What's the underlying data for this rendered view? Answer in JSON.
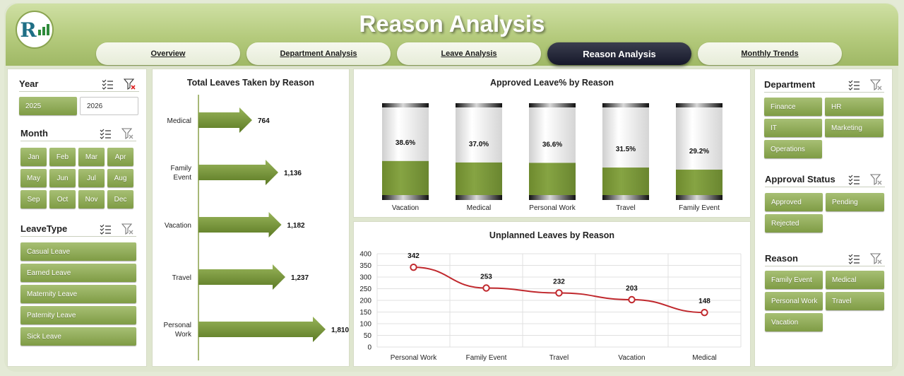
{
  "header": {
    "title": "Reason Analysis",
    "tabs": [
      {
        "label": "Overview",
        "active": false
      },
      {
        "label": "Department Analysis",
        "active": false
      },
      {
        "label": "Leave Analysis",
        "active": false
      },
      {
        "label": "Reason Analysis",
        "active": true
      },
      {
        "label": "Monthly Trends",
        "active": false
      }
    ]
  },
  "left_slicers": {
    "year": {
      "title": "Year",
      "items": [
        {
          "label": "2025",
          "selected": true
        },
        {
          "label": "2026",
          "selected": false
        }
      ]
    },
    "month": {
      "title": "Month",
      "items": [
        "Jan",
        "Feb",
        "Mar",
        "Apr",
        "May",
        "Jun",
        "Jul",
        "Aug",
        "Sep",
        "Oct",
        "Nov",
        "Dec"
      ]
    },
    "leavetype": {
      "title": "LeaveType",
      "items": [
        "Casual Leave",
        "Earned Leave",
        "Maternity Leave",
        "Paternity Leave",
        "Sick Leave"
      ]
    }
  },
  "right_slicers": {
    "department": {
      "title": "Department",
      "items": [
        "Finance",
        "HR",
        "IT",
        "Marketing",
        "Operations"
      ]
    },
    "approval": {
      "title": "Approval Status",
      "items": [
        "Approved",
        "Pending",
        "Rejected"
      ]
    },
    "reason": {
      "title": "Reason",
      "items": [
        "Family Event",
        "Medical",
        "Personal Work",
        "Travel",
        "Vacation"
      ]
    }
  },
  "chart_data": [
    {
      "type": "bar",
      "orientation": "horizontal",
      "title": "Total Leaves Taken by Reason",
      "categories": [
        "Medical",
        "Family Event",
        "Vacation",
        "Travel",
        "Personal Work"
      ],
      "values": [
        764,
        1136,
        1182,
        1237,
        1810
      ],
      "value_labels": [
        "764",
        "1,136",
        "1,182",
        "1,237",
        "1,810"
      ],
      "color": "#7a9a3a"
    },
    {
      "type": "bar",
      "title": "Approved Leave% by Reason",
      "categories": [
        "Vacation",
        "Medical",
        "Personal Work",
        "Travel",
        "Family Event"
      ],
      "values": [
        38.6,
        37.0,
        36.6,
        31.5,
        29.2
      ],
      "value_labels": [
        "38.6%",
        "37.0%",
        "36.6%",
        "31.5%",
        "29.2%"
      ],
      "ylim": [
        0,
        100
      ],
      "color": "#7a9a3a"
    },
    {
      "type": "line",
      "title": "Unplanned Leaves by Reason",
      "categories": [
        "Personal Work",
        "Family Event",
        "Travel",
        "Vacation",
        "Medical"
      ],
      "values": [
        342,
        253,
        232,
        203,
        148
      ],
      "ylim": [
        0,
        400
      ],
      "yticks": [
        "0",
        "50",
        "100",
        "150",
        "200",
        "250",
        "300",
        "350",
        "400"
      ],
      "grid": true,
      "color": "#c0282d"
    }
  ]
}
